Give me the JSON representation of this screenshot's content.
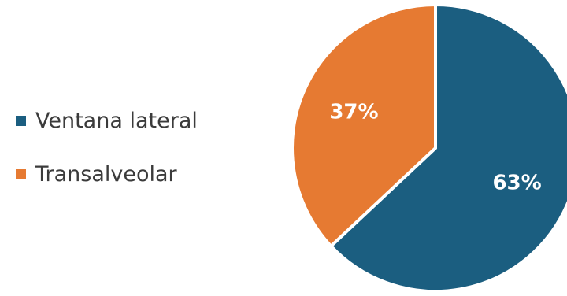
{
  "chart_data": {
    "type": "pie",
    "categories": [
      "Ventana lateral",
      "Transalveolar"
    ],
    "values": [
      63,
      37
    ],
    "labels": [
      "63%",
      "37%"
    ],
    "colors": [
      "#1b5e80",
      "#e67a32"
    ],
    "legend_position": "left"
  }
}
